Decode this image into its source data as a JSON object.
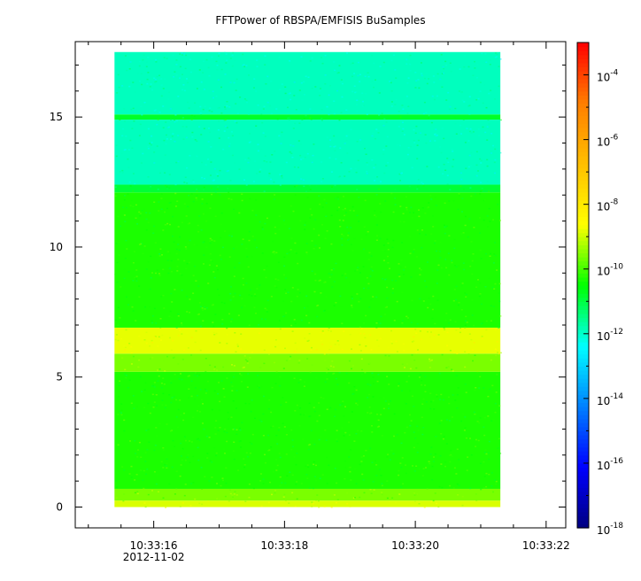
{
  "chart_data": {
    "type": "heatmap",
    "title": "FFTPower of RBSPA/EMFISIS  BuSamples",
    "xlabel": "",
    "ylabel": "",
    "x_start": "10:33:15.4",
    "x_end": "10:33:21.3",
    "xlim": [
      "10:33:14.8",
      "10:33:22.3"
    ],
    "x_ticks": [
      "10:33:16",
      "10:33:18",
      "10:33:20",
      "10:33:22"
    ],
    "x_date_label": "2012-11-02",
    "ylim": [
      -0.8,
      17.9
    ],
    "y_ticks": [
      0,
      5,
      10,
      15
    ],
    "y_data_range": [
      0,
      17.5
    ],
    "colorbar": {
      "scale": "log",
      "range": [
        1e-18,
        0.001
      ],
      "tick_bases": [
        "10",
        "10",
        "10",
        "10",
        "10",
        "10",
        "10",
        "10"
      ],
      "tick_exponents": [
        "-4",
        "-6",
        "-8",
        "-10",
        "-12",
        "-14",
        "-16",
        "-18"
      ],
      "colormap": "rainbow",
      "colors": [
        "#00007f",
        "#0000ff",
        "#00ffff",
        "#00ff00",
        "#ffff00",
        "#ff7f00",
        "#ff0000",
        "#ff0000"
      ]
    },
    "power_bands": [
      {
        "y_from": 0.0,
        "y_to": 0.25,
        "log10_power": -8.9
      },
      {
        "y_from": 0.25,
        "y_to": 0.7,
        "log10_power": -9.6
      },
      {
        "y_from": 0.7,
        "y_to": 5.2,
        "log10_power": -10.3
      },
      {
        "y_from": 5.2,
        "y_to": 5.9,
        "log10_power": -9.6
      },
      {
        "y_from": 5.9,
        "y_to": 6.9,
        "log10_power": -8.8
      },
      {
        "y_from": 6.9,
        "y_to": 12.1,
        "log10_power": -10.3
      },
      {
        "y_from": 12.1,
        "y_to": 12.4,
        "log10_power": -10.9
      },
      {
        "y_from": 12.4,
        "y_to": 14.9,
        "log10_power": -11.9
      },
      {
        "y_from": 14.9,
        "y_to": 15.1,
        "log10_power": -10.8
      },
      {
        "y_from": 15.1,
        "y_to": 17.5,
        "log10_power": -11.9
      }
    ]
  }
}
